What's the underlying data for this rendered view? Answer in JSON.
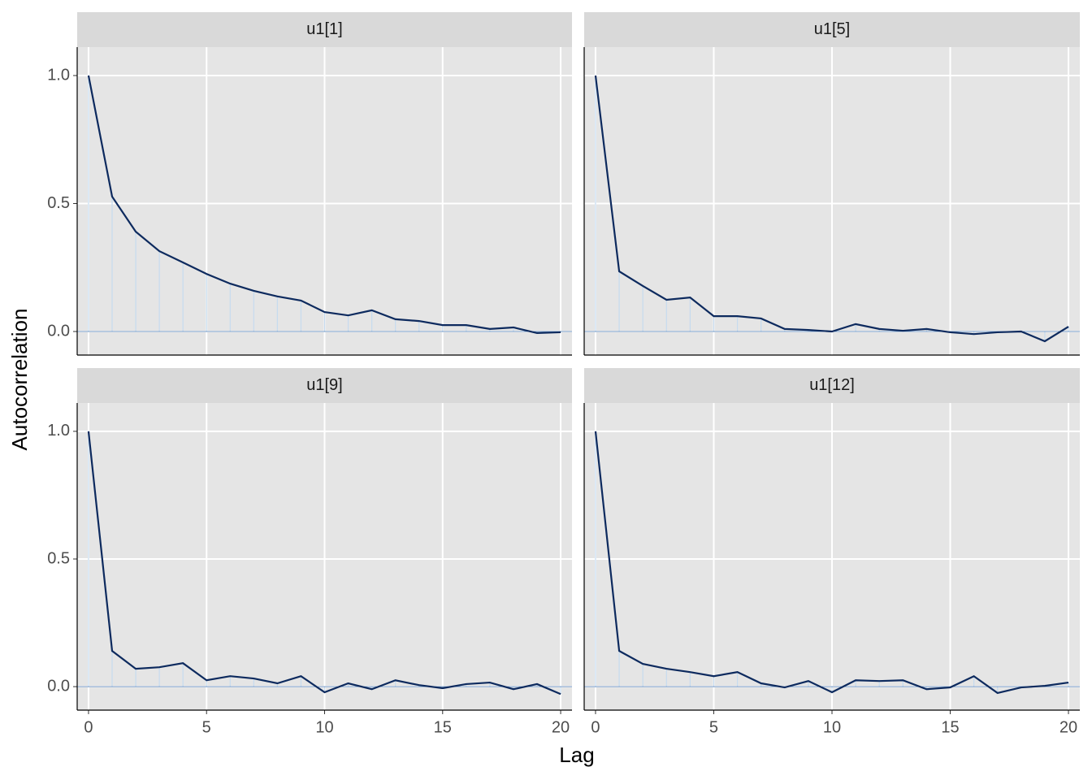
{
  "chart_data": {
    "type": "line",
    "x_label": "Lag",
    "y_label": "Autocorrelation",
    "x": [
      0,
      1,
      2,
      3,
      4,
      5,
      6,
      7,
      8,
      9,
      10,
      11,
      12,
      13,
      14,
      15,
      16,
      17,
      18,
      19,
      20
    ],
    "xlim": [
      -0.48,
      20.48
    ],
    "xticks": [
      0,
      5,
      10,
      15,
      20
    ],
    "ylim": [
      -0.092,
      1.111
    ],
    "yticks": [
      {
        "value": 0,
        "label": "0.0"
      },
      {
        "value": 0.5,
        "label": "0.5"
      },
      {
        "value": 1,
        "label": "1.0"
      }
    ],
    "grid": true,
    "color": "#0d2a5e",
    "bar_color": "#c6dbef",
    "facets": [
      {
        "title": "u1[1]",
        "values": [
          1,
          0.527,
          0.39,
          0.314,
          0.27,
          0.225,
          0.187,
          0.159,
          0.137,
          0.121,
          0.076,
          0.063,
          0.083,
          0.048,
          0.041,
          0.025,
          0.025,
          0.01,
          0.016,
          -0.006,
          -0.003
        ]
      },
      {
        "title": "u1[5]",
        "values": [
          1,
          0.235,
          0.178,
          0.124,
          0.133,
          0.06,
          0.06,
          0.051,
          0.01,
          0.006,
          0,
          0.029,
          0.01,
          0.003,
          0.01,
          -0.003,
          -0.01,
          -0.003,
          0,
          -0.038,
          0.019
        ]
      },
      {
        "title": "u1[9]",
        "values": [
          1,
          0.14,
          0.07,
          0.076,
          0.092,
          0.025,
          0.041,
          0.032,
          0.013,
          0.041,
          -0.022,
          0.013,
          -0.01,
          0.025,
          0.006,
          -0.006,
          0.01,
          0.016,
          -0.01,
          0.01,
          -0.029
        ]
      },
      {
        "title": "u1[12]",
        "values": [
          1,
          0.14,
          0.089,
          0.07,
          0.057,
          0.041,
          0.057,
          0.013,
          -0.003,
          0.022,
          -0.022,
          0.025,
          0.022,
          0.025,
          -0.01,
          -0.003,
          0.041,
          -0.025,
          -0.003,
          0.003,
          0.016
        ]
      }
    ]
  }
}
